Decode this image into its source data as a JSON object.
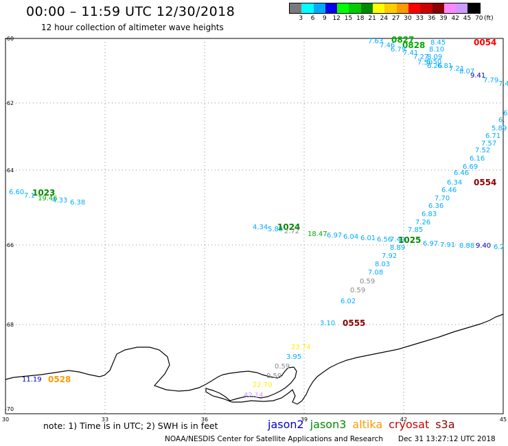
{
  "header": {
    "title": "00:00 – 11:59 UTC 12/30/2018",
    "subtitle": "12 hour collection of altimeter wave heights"
  },
  "legend": {
    "unit": "(ft)",
    "swatches": [
      {
        "label": "3",
        "color": "#7a7a7a"
      },
      {
        "label": "6",
        "color": "#00ffff"
      },
      {
        "label": "9",
        "color": "#00aaff"
      },
      {
        "label": "12",
        "color": "#0000ee"
      },
      {
        "label": "15",
        "color": "#00ff00"
      },
      {
        "label": "18",
        "color": "#00cc00"
      },
      {
        "label": "21",
        "color": "#008800"
      },
      {
        "label": "24",
        "color": "#ffff00"
      },
      {
        "label": "27",
        "color": "#ffcc00"
      },
      {
        "label": "30",
        "color": "#ff9900"
      },
      {
        "label": "33",
        "color": "#ff0000"
      },
      {
        "label": "36",
        "color": "#cc0000"
      },
      {
        "label": "39",
        "color": "#880000"
      },
      {
        "label": "42",
        "color": "#ff88ff"
      },
      {
        "label": "45",
        "color": "#cc99ff"
      },
      {
        "label": "70",
        "color": "#000000"
      }
    ]
  },
  "axes": {
    "lon_ticks": [
      "30",
      "33",
      "36",
      "39",
      "42",
      "45"
    ],
    "lat_ticks": [
      "-60",
      "-62",
      "-64",
      "-66",
      "-68",
      "-70"
    ]
  },
  "observations": [
    {
      "text": "7.63",
      "color": "#00aaff"
    },
    {
      "text": "0827",
      "color": "#00aa00",
      "kind": "time"
    },
    {
      "text": "8.45",
      "color": "#00aaff"
    },
    {
      "text": "0054",
      "color": "#ff0000",
      "kind": "time"
    },
    {
      "text": "7.46",
      "color": "#00aaff"
    },
    {
      "text": "0828",
      "color": "#00aa00",
      "kind": "time"
    },
    {
      "text": "8.10",
      "color": "#00aaff"
    },
    {
      "text": "6.79",
      "color": "#00aaff"
    },
    {
      "text": "7.41",
      "color": "#00aaff"
    },
    {
      "text": "7.27",
      "color": "#00aaff"
    },
    {
      "text": "8.09",
      "color": "#00aaff"
    },
    {
      "text": "6.50",
      "color": "#00aaff"
    },
    {
      "text": "7.50",
      "color": "#00aaff"
    },
    {
      "text": "6.26",
      "color": "#00aaff"
    },
    {
      "text": "6.81",
      "color": "#00aaff"
    },
    {
      "text": "7.21",
      "color": "#00aaff"
    },
    {
      "text": "8.07",
      "color": "#00aaff"
    },
    {
      "text": "9.41",
      "color": "#0000cc"
    },
    {
      "text": "7.79",
      "color": "#00aaff"
    },
    {
      "text": "7.4",
      "color": "#00aaff"
    },
    {
      "text": "6",
      "color": "#00aaff"
    },
    {
      "text": "6.",
      "color": "#00aaff"
    },
    {
      "text": "5.89",
      "color": "#00aaff"
    },
    {
      "text": "6.71",
      "color": "#00aaff"
    },
    {
      "text": "7.57",
      "color": "#00aaff"
    },
    {
      "text": "7.52",
      "color": "#00aaff"
    },
    {
      "text": "6.16",
      "color": "#00aaff"
    },
    {
      "text": "6.69",
      "color": "#00aaff"
    },
    {
      "text": "6.46",
      "color": "#00aaff"
    },
    {
      "text": "0554",
      "color": "#880000",
      "kind": "time"
    },
    {
      "text": "6.34",
      "color": "#00aaff"
    },
    {
      "text": "6.46",
      "color": "#00aaff"
    },
    {
      "text": "7.70",
      "color": "#00aaff"
    },
    {
      "text": "6.36",
      "color": "#00aaff"
    },
    {
      "text": "6.83",
      "color": "#00aaff"
    },
    {
      "text": "7.26",
      "color": "#00aaff"
    },
    {
      "text": "7.85",
      "color": "#00aaff"
    },
    {
      "text": "6.60",
      "color": "#00aaff"
    },
    {
      "text": "1023",
      "color": "#008800",
      "kind": "time"
    },
    {
      "text": "7.1",
      "color": "#00aaff"
    },
    {
      "text": "19.46",
      "color": "#00aa00"
    },
    {
      "text": "4.33",
      "color": "#00aaff"
    },
    {
      "text": "6.38",
      "color": "#00aaff"
    },
    {
      "text": "4.34",
      "color": "#00aaff"
    },
    {
      "text": "5.88",
      "color": "#00aaff"
    },
    {
      "text": "1024",
      "color": "#008800",
      "kind": "time"
    },
    {
      "text": "2.72",
      "color": "#888888"
    },
    {
      "text": "18.47",
      "color": "#00aa00"
    },
    {
      "text": "6.97",
      "color": "#00aaff"
    },
    {
      "text": "6.04",
      "color": "#00aaff"
    },
    {
      "text": "6.01",
      "color": "#00aaff"
    },
    {
      "text": "6.56",
      "color": "#00aaff"
    },
    {
      "text": "7.49",
      "color": "#00aaff"
    },
    {
      "text": "1025",
      "color": "#008800",
      "kind": "time"
    },
    {
      "text": "6.97",
      "color": "#00aaff"
    },
    {
      "text": "7.91",
      "color": "#00aaff"
    },
    {
      "text": "8.88",
      "color": "#00aaff"
    },
    {
      "text": "9.40",
      "color": "#0000cc"
    },
    {
      "text": "6.2",
      "color": "#00aaff"
    },
    {
      "text": "8.89",
      "color": "#00aaff"
    },
    {
      "text": "7.92",
      "color": "#00aaff"
    },
    {
      "text": "8.03",
      "color": "#00aaff"
    },
    {
      "text": "7.08",
      "color": "#00aaff"
    },
    {
      "text": "0.59",
      "color": "#888888"
    },
    {
      "text": "0.59",
      "color": "#888888"
    },
    {
      "text": "6.02",
      "color": "#00aaff"
    },
    {
      "text": "3.10",
      "color": "#00aaff"
    },
    {
      "text": "0555",
      "color": "#880000",
      "kind": "time"
    },
    {
      "text": "23.74",
      "color": "#ffee00"
    },
    {
      "text": "3.95",
      "color": "#00aaff"
    },
    {
      "text": "0.59",
      "color": "#888888"
    },
    {
      "text": "0.59",
      "color": "#888888"
    },
    {
      "text": "22.70",
      "color": "#ffee00"
    },
    {
      "text": "42.14",
      "color": "#cc99ff"
    },
    {
      "text": "11.19",
      "color": "#0000cc"
    },
    {
      "text": "0528",
      "color": "#ff9900",
      "kind": "time"
    }
  ],
  "footer": {
    "note": "note: 1) Time is in UTC; 2) SWH is in feet",
    "satellites": [
      {
        "name": "jason2",
        "color": "#0000cc"
      },
      {
        "name": "jason3",
        "color": "#008800"
      },
      {
        "name": "altika",
        "color": "#ff9900"
      },
      {
        "name": "cryosat",
        "color": "#cc0000"
      },
      {
        "name": "s3a",
        "color": "#880000"
      }
    ],
    "credit": "NOAA/NESDIS Center for Satellite Applications and Research",
    "timestamp": "Dec 31 13:27:12 UTC 2018"
  }
}
